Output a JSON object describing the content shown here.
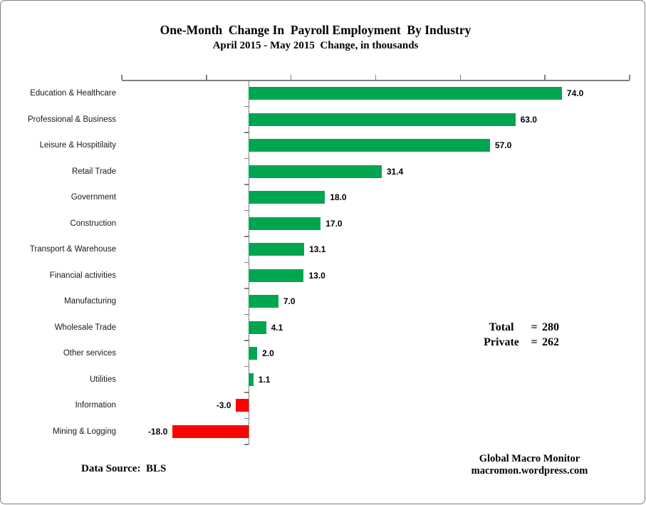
{
  "chart_data": {
    "type": "bar",
    "orientation": "horizontal",
    "title": "One-Month  Change In  Payroll Employment  By Industry",
    "subtitle": "April 2015 - May 2015  Change, in thousands",
    "xlabel": "",
    "ylabel": "",
    "categories": [
      "Education & Healthcare",
      "Professional & Business",
      "Leisure & Hospitilaity",
      "Retail Trade",
      "Government",
      "Construction",
      "Transport & Warehouse",
      "Financial activities",
      "Manufacturing",
      "Wholesale Trade",
      "Other services",
      "Utilities",
      "Information",
      "Mining & Logging"
    ],
    "values": [
      74.0,
      63.0,
      57.0,
      31.4,
      18.0,
      17.0,
      13.1,
      13.0,
      7.0,
      4.1,
      2.0,
      1.1,
      -3.0,
      -18.0
    ],
    "xlim": [
      -30,
      90
    ],
    "tick_step": 20,
    "tick_labels_shown": false,
    "grid": false,
    "value_axis_position": "top",
    "bar_color_positive": "#00A550",
    "bar_color_negative": "#FF0000",
    "axis_color": "#808080",
    "annotations": [
      {
        "label": "Total",
        "eq": "=",
        "value": "280"
      },
      {
        "label": "Private",
        "eq": "=",
        "value": "262"
      }
    ]
  },
  "footer": {
    "source": "Data Source:  BLS",
    "credit_line1": "Global Macro Monitor",
    "credit_line2": "macromon.wordpress.com"
  }
}
